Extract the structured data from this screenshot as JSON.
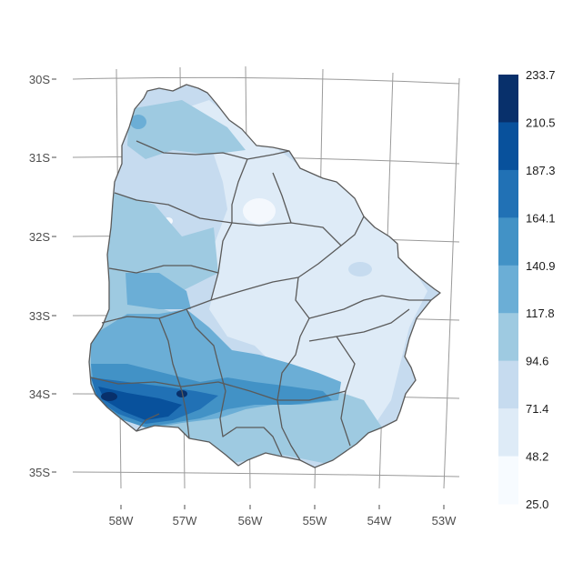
{
  "map": {
    "latitude_ticks": [
      "30S",
      "31S",
      "32S",
      "33S",
      "34S",
      "35S"
    ],
    "longitude_ticks": [
      "58W",
      "57W",
      "56W",
      "55W",
      "54W",
      "53W"
    ],
    "colors": {
      "background": "#ffffff",
      "graticule": "#9a9a9a",
      "boundary": "#5a5a5a",
      "land_base": "#c6dbef"
    }
  },
  "legend": {
    "breaks": [
      "233.7",
      "210.5",
      "187.3",
      "164.1",
      "140.9",
      "117.8",
      "94.6",
      "71.4",
      "48.2",
      "25.0"
    ],
    "colors": [
      "#08306b",
      "#08519c",
      "#2171b5",
      "#4292c6",
      "#6baed6",
      "#9ecae1",
      "#c6dbef",
      "#deebf7",
      "#f7fbff"
    ]
  }
}
